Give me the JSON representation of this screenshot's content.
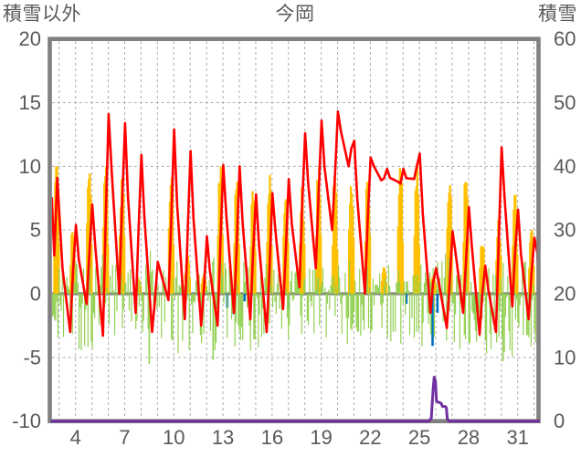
{
  "chart": {
    "title": "今岡",
    "left_axis_title": "積雪以外",
    "right_axis_title": "積雪",
    "left_ticks": [
      20,
      15,
      10,
      5,
      0,
      -5,
      -10
    ],
    "right_ticks": [
      60,
      50,
      40,
      30,
      20,
      10,
      0
    ],
    "x_ticks": [
      4,
      7,
      10,
      13,
      16,
      19,
      22,
      25,
      28,
      31
    ],
    "colors": {
      "temperature": "#FF0000",
      "sunshine": "#FFC000",
      "green_anomaly": "#92D050",
      "snowfall": "#0070C0",
      "snow_depth": "#7030A0",
      "frame": "#808080",
      "zero_line": "#808080",
      "gridline": "#ADADAD",
      "text": "#595959",
      "background": "#FFFFFF"
    }
  },
  "chart_data": {
    "type": "line+bar",
    "title": "今岡",
    "x_unit": "day of month",
    "left_axis": {
      "label": "積雪以外",
      "range": [
        -10,
        20
      ],
      "gridline_step": 5
    },
    "right_axis": {
      "label": "積雪",
      "range": [
        0,
        60
      ],
      "gridline_step": 10
    },
    "x_axis": {
      "tick_labels": [
        4,
        7,
        10,
        13,
        16,
        19,
        22,
        25,
        28,
        31
      ],
      "day_domain": [
        2.55,
        32.28
      ],
      "daily_gridlines": true
    },
    "grid": "dashed",
    "legend": "none",
    "series": [
      {
        "name": "temperature",
        "type": "line",
        "axis": "left",
        "color": "#FF0000",
        "days": [
          3,
          4,
          5,
          6,
          7,
          8,
          9,
          10,
          11,
          12,
          13,
          14,
          15,
          16,
          17,
          18,
          19,
          20,
          21,
          22,
          23,
          24,
          25,
          26,
          27,
          28,
          29,
          30,
          31,
          32
        ],
        "daily_max": [
          9.1,
          5.4,
          7.0,
          14.1,
          13.4,
          10.9,
          2.5,
          12.9,
          11.2,
          4.5,
          10.1,
          10.0,
          7.8,
          7.9,
          9.0,
          12.6,
          13.6,
          14.3,
          12.0,
          10.7,
          9.8,
          9.8,
          11.0,
          2.0,
          4.9,
          6.8,
          2.2,
          11.5,
          6.6,
          4.4
        ],
        "daily_min_after": [
          -3.0,
          -0.8,
          -3.3,
          0.0,
          -1.5,
          -3.0,
          -0.5,
          -2.0,
          -2.5,
          -2.5,
          -1.5,
          -2.0,
          -3.0,
          -1.2,
          0.5,
          2.0,
          5.0,
          10.0,
          0.0,
          8.9,
          8.8,
          9.0,
          -1.5,
          -2.7,
          -1.5,
          -3.2,
          -3.0,
          -1.0,
          -2.0,
          1.0
        ],
        "lead_in": [
          [
            2.55,
            7.5
          ],
          [
            2.7,
            3.0
          ],
          [
            2.88,
            9.1
          ],
          [
            3.2,
            2.0
          ]
        ],
        "end_value": 0.5
      },
      {
        "name": "sunshine",
        "type": "bar",
        "axis": "left",
        "color": "#FFC000",
        "max_height": 10,
        "days": [
          3,
          4,
          5,
          6,
          7,
          8,
          9,
          10,
          11,
          12,
          13,
          14,
          15,
          16,
          17,
          18,
          19,
          20,
          21,
          22,
          23,
          24,
          25,
          26,
          27,
          28,
          29,
          30,
          31,
          32
        ],
        "daily_fraction": [
          0.97,
          0.5,
          0.97,
          0.92,
          0.88,
          0.12,
          0.05,
          0.97,
          0.3,
          0.15,
          0.97,
          0.8,
          0.72,
          0.88,
          0.8,
          0.78,
          0.92,
          0.88,
          0.9,
          0.9,
          0.2,
          0.95,
          0.95,
          0.15,
          0.9,
          0.95,
          0.4,
          0.6,
          0.75,
          0.45
        ]
      },
      {
        "name": "green-anomaly",
        "type": "bar",
        "axis": "left",
        "color": "#92D050",
        "days": [
          3,
          4,
          5,
          6,
          7,
          8,
          9,
          10,
          11,
          12,
          13,
          14,
          15,
          16,
          17,
          18,
          19,
          20,
          21,
          22,
          23,
          24,
          25,
          26,
          27,
          28,
          29,
          30,
          31,
          32
        ],
        "daily_amplitude": [
          3.2,
          3.6,
          4.0,
          3.0,
          2.6,
          4.6,
          3.4,
          3.8,
          3.2,
          4.4,
          3.4,
          3.8,
          3.4,
          3.0,
          2.8,
          2.6,
          3.0,
          3.4,
          2.8,
          3.0,
          3.2,
          2.8,
          3.4,
          4.2,
          3.6,
          3.2,
          3.8,
          4.4,
          3.6,
          3.2
        ],
        "deep_spikes": [
          [
            8.5,
            -5.5
          ],
          [
            12.4,
            -5.2
          ],
          [
            25.7,
            -3.2
          ],
          [
            30.1,
            -5.3
          ]
        ]
      },
      {
        "name": "snowfall",
        "type": "bar",
        "axis": "left",
        "color": "#0070C0",
        "events": [
          [
            13.26,
            -1.1
          ],
          [
            13.65,
            -1.6
          ],
          [
            14.32,
            -0.6
          ],
          [
            17.0,
            -1.2
          ],
          [
            24.2,
            -0.8
          ],
          [
            25.8,
            -4.1
          ],
          [
            26.1,
            -1.5
          ],
          [
            28.4,
            -1.5
          ]
        ]
      },
      {
        "name": "snow-depth",
        "type": "line",
        "axis": "right",
        "color": "#7030A0",
        "points": [
          [
            2.55,
            0
          ],
          [
            25.55,
            0
          ],
          [
            25.72,
            0.4
          ],
          [
            25.84,
            5.2
          ],
          [
            25.9,
            6.9
          ],
          [
            25.98,
            6.3
          ],
          [
            26.04,
            3.1
          ],
          [
            26.33,
            2.8
          ],
          [
            26.4,
            2.3
          ],
          [
            26.58,
            2.3
          ],
          [
            26.64,
            2.1
          ],
          [
            26.7,
            0.4
          ],
          [
            26.8,
            0
          ],
          [
            32.28,
            0
          ]
        ]
      }
    ]
  }
}
